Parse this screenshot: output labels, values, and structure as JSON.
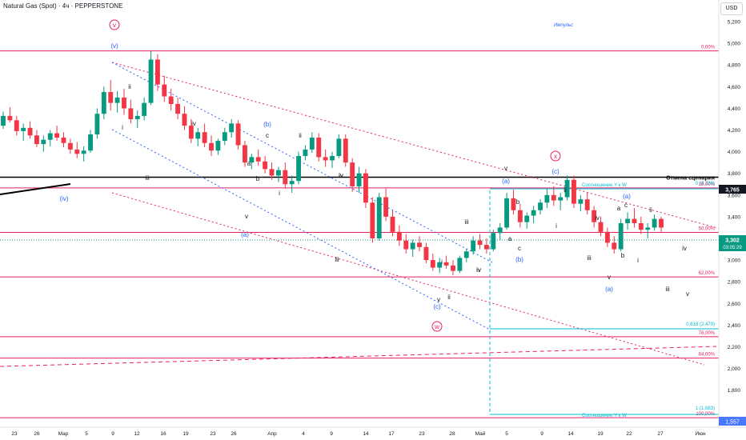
{
  "header": {
    "title": "Natural Gas (Spot) · 4ч · PEPPERSTONE",
    "currency": "USD"
  },
  "chart_data": {
    "type": "candlestick",
    "y_axis": {
      "min": 1.55,
      "max": 5.3,
      "ticks": [
        "5,200",
        "5,000",
        "4,800",
        "4,600",
        "4,400",
        "4,200",
        "4,000",
        "3,800",
        "3,600",
        "3,400",
        "3,200",
        "3,000",
        "2,800",
        "2,600",
        "2,400",
        "2,200",
        "2,000",
        "1,800"
      ]
    },
    "x_axis": {
      "ticks": [
        "23",
        "26",
        "Мар",
        "5",
        "9",
        "12",
        "16",
        "19",
        "23",
        "26",
        "Апр",
        "4",
        "9",
        "14",
        "17",
        "23",
        "28",
        "Май",
        "5",
        "9",
        "14",
        "19",
        "22",
        "27",
        "Июн"
      ]
    },
    "price_labels": {
      "cancel": "3,765",
      "current": "3,302",
      "countdown": "03:05:29",
      "bottom": "1,557"
    },
    "hlines": [
      {
        "price": 4.93,
        "color": "#e91e63",
        "label": "0,00%"
      },
      {
        "price": 3.765,
        "color": "#000000",
        "label": "Отмена сценария"
      },
      {
        "price": 3.666,
        "color": "#e91e63",
        "label": "38,00%"
      },
      {
        "price": 3.255,
        "color": "#e91e63",
        "label": "50,00%"
      },
      {
        "price": 2.845,
        "color": "#e91e63",
        "label": "62,00%"
      },
      {
        "price": 2.293,
        "color": "#e91e63",
        "label": "78,00%"
      },
      {
        "price": 2.095,
        "color": "#e91e63",
        "label": "84,00%"
      },
      {
        "price": 1.545,
        "color": "#e91e63",
        "label": "100,00%"
      }
    ],
    "fib_labels": {
      "top": "0 (3,766)",
      "top_text": "Соотношение Y к W",
      "mid": "0,618 (2,479)",
      "bottom": "1 (1,683)",
      "bottom_text": "Соотношение Y к W"
    },
    "annotations": {
      "impulse": "Импульс",
      "circled": [
        "v",
        "x",
        "w"
      ],
      "blue": [
        "(v)",
        "(iv)",
        "(b)",
        "(a)",
        "(c)",
        "(a)",
        "(c)",
        "(b)",
        "(a)"
      ],
      "black": [
        "ii",
        "i",
        "iii",
        "iv",
        "v",
        "b",
        "a",
        "c",
        "ii",
        "i",
        "iv",
        "iii",
        "iv",
        "v",
        "ii",
        "i",
        "iii",
        "iv",
        "v",
        "b",
        "a",
        "c",
        "ii",
        "i",
        "iv",
        "iii",
        "v",
        "a",
        "b",
        "c",
        "ii",
        "iv",
        "i",
        "iii",
        "v",
        "iv",
        "iii",
        "v"
      ]
    },
    "candles": [
      [
        4.24,
        4.37,
        4.21,
        4.33
      ],
      [
        4.33,
        4.41,
        4.27,
        4.29
      ],
      [
        4.29,
        4.33,
        4.15,
        4.19
      ],
      [
        4.19,
        4.26,
        4.1,
        4.22
      ],
      [
        4.22,
        4.28,
        4.12,
        4.15
      ],
      [
        4.15,
        4.2,
        4.04,
        4.07
      ],
      [
        4.07,
        4.15,
        4.0,
        4.11
      ],
      [
        4.11,
        4.2,
        4.05,
        4.17
      ],
      [
        4.17,
        4.24,
        4.1,
        4.13
      ],
      [
        4.13,
        4.18,
        4.04,
        4.08
      ],
      [
        4.08,
        4.12,
        3.98,
        4.02
      ],
      [
        4.02,
        4.09,
        3.94,
        3.98
      ],
      [
        3.98,
        4.05,
        3.91,
        4.01
      ],
      [
        4.01,
        4.2,
        3.99,
        4.16
      ],
      [
        4.16,
        4.4,
        4.12,
        4.35
      ],
      [
        4.35,
        4.6,
        4.3,
        4.55
      ],
      [
        4.55,
        4.66,
        4.38,
        4.45
      ],
      [
        4.45,
        4.56,
        4.36,
        4.5
      ],
      [
        4.5,
        4.58,
        4.34,
        4.4
      ],
      [
        4.4,
        4.48,
        4.26,
        4.3
      ],
      [
        4.3,
        4.38,
        4.22,
        4.33
      ],
      [
        4.33,
        4.5,
        4.29,
        4.45
      ],
      [
        4.45,
        4.93,
        4.43,
        4.85
      ],
      [
        4.85,
        4.9,
        4.56,
        4.62
      ],
      [
        4.62,
        4.7,
        4.46,
        4.51
      ],
      [
        4.51,
        4.58,
        4.38,
        4.44
      ],
      [
        4.44,
        4.5,
        4.3,
        4.35
      ],
      [
        4.35,
        4.42,
        4.2,
        4.24
      ],
      [
        4.24,
        4.3,
        4.08,
        4.12
      ],
      [
        4.12,
        4.22,
        4.05,
        4.18
      ],
      [
        4.18,
        4.26,
        4.04,
        4.08
      ],
      [
        4.08,
        4.15,
        3.96,
        4.01
      ],
      [
        4.01,
        4.12,
        3.97,
        4.1
      ],
      [
        4.1,
        4.22,
        4.06,
        4.18
      ],
      [
        4.18,
        4.3,
        4.13,
        4.26
      ],
      [
        4.26,
        4.29,
        4.02,
        4.06
      ],
      [
        4.06,
        4.1,
        3.86,
        3.9
      ],
      [
        3.9,
        3.98,
        3.84,
        3.95
      ],
      [
        3.95,
        4.02,
        3.87,
        3.91
      ],
      [
        3.91,
        3.96,
        3.8,
        3.84
      ],
      [
        3.84,
        3.9,
        3.74,
        3.78
      ],
      [
        3.78,
        3.86,
        3.72,
        3.83
      ],
      [
        3.83,
        3.9,
        3.66,
        3.7
      ],
      [
        3.7,
        3.78,
        3.62,
        3.73
      ],
      [
        3.73,
        4.0,
        3.7,
        3.96
      ],
      [
        3.96,
        4.06,
        3.92,
        4.02
      ],
      [
        4.02,
        4.18,
        3.99,
        4.13
      ],
      [
        4.13,
        4.17,
        3.91,
        3.95
      ],
      [
        3.95,
        4.02,
        3.86,
        3.92
      ],
      [
        3.92,
        4.0,
        3.85,
        3.96
      ],
      [
        3.96,
        4.16,
        3.94,
        4.12
      ],
      [
        4.12,
        4.16,
        3.86,
        3.9
      ],
      [
        3.9,
        3.94,
        3.63,
        3.68
      ],
      [
        3.68,
        3.86,
        3.62,
        3.8
      ],
      [
        3.8,
        3.84,
        3.48,
        3.53
      ],
      [
        3.53,
        3.58,
        3.16,
        3.2
      ],
      [
        3.2,
        3.62,
        3.18,
        3.58
      ],
      [
        3.58,
        3.66,
        3.36,
        3.4
      ],
      [
        3.4,
        3.46,
        3.22,
        3.26
      ],
      [
        3.26,
        3.32,
        3.13,
        3.18
      ],
      [
        3.18,
        3.24,
        3.06,
        3.1
      ],
      [
        3.1,
        3.19,
        3.03,
        3.16
      ],
      [
        3.16,
        3.22,
        3.08,
        3.12
      ],
      [
        3.12,
        3.16,
        2.97,
        3.0
      ],
      [
        3.0,
        3.06,
        2.9,
        2.93
      ],
      [
        2.93,
        3.02,
        2.88,
        2.98
      ],
      [
        2.98,
        3.04,
        2.92,
        2.95
      ],
      [
        2.95,
        3.0,
        2.86,
        2.9
      ],
      [
        2.9,
        3.04,
        2.88,
        3.02
      ],
      [
        3.02,
        3.1,
        2.98,
        3.08
      ],
      [
        3.08,
        3.22,
        3.05,
        3.18
      ],
      [
        3.18,
        3.24,
        3.1,
        3.14
      ],
      [
        3.14,
        3.2,
        3.06,
        3.1
      ],
      [
        3.1,
        3.28,
        3.08,
        3.25
      ],
      [
        3.25,
        3.34,
        3.18,
        3.3
      ],
      [
        3.3,
        3.62,
        3.28,
        3.57
      ],
      [
        3.57,
        3.65,
        3.42,
        3.46
      ],
      [
        3.46,
        3.52,
        3.3,
        3.35
      ],
      [
        3.35,
        3.44,
        3.29,
        3.41
      ],
      [
        3.41,
        3.5,
        3.34,
        3.46
      ],
      [
        3.46,
        3.56,
        3.42,
        3.53
      ],
      [
        3.53,
        3.66,
        3.48,
        3.6
      ],
      [
        3.6,
        3.68,
        3.5,
        3.55
      ],
      [
        3.55,
        3.62,
        3.46,
        3.58
      ],
      [
        3.58,
        3.78,
        3.55,
        3.74
      ],
      [
        3.74,
        3.78,
        3.48,
        3.52
      ],
      [
        3.52,
        3.6,
        3.45,
        3.56
      ],
      [
        3.56,
        3.62,
        3.42,
        3.46
      ],
      [
        3.46,
        3.5,
        3.3,
        3.35
      ],
      [
        3.35,
        3.4,
        3.22,
        3.26
      ],
      [
        3.26,
        3.3,
        3.12,
        3.16
      ],
      [
        3.16,
        3.22,
        3.06,
        3.1
      ],
      [
        3.1,
        3.38,
        3.08,
        3.34
      ],
      [
        3.34,
        3.44,
        3.28,
        3.38
      ],
      [
        3.38,
        3.48,
        3.3,
        3.34
      ],
      [
        3.34,
        3.4,
        3.24,
        3.28
      ],
      [
        3.28,
        3.34,
        3.2,
        3.3
      ],
      [
        3.3,
        3.42,
        3.27,
        3.38
      ],
      [
        3.38,
        3.4,
        3.26,
        3.3
      ]
    ]
  }
}
